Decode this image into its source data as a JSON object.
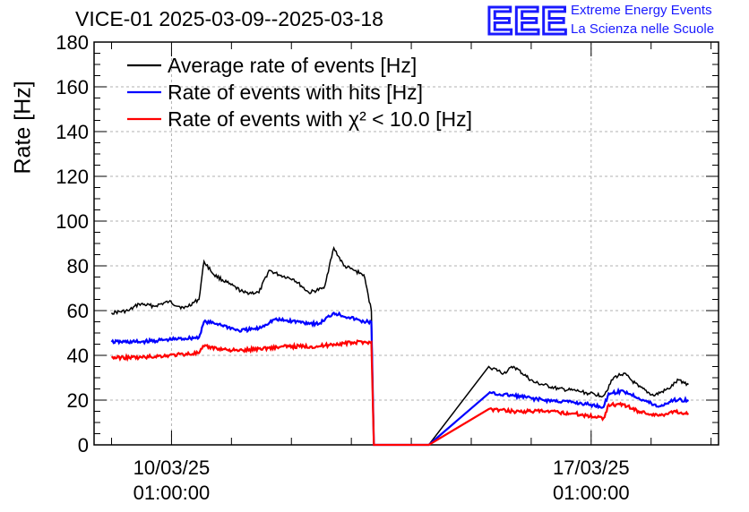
{
  "title": "VICE-01 2025-03-09--2025-03-18",
  "logo": {
    "mark": "EEE",
    "line1": "Extreme Energy Events",
    "line2": "La Scienza nelle Scuole",
    "color": "#1a1aff"
  },
  "chart_data": {
    "type": "line",
    "ylabel": "Rate [Hz]",
    "xlabel": "",
    "ylim": [
      0,
      180
    ],
    "xlim": [
      "2025-03-08 18:00",
      "2025-03-19 04:00"
    ],
    "yticks": [
      "0",
      "20",
      "40",
      "60",
      "80",
      "100",
      "120",
      "140",
      "160",
      "180"
    ],
    "xticks": [
      {
        "x": "2025-03-10 01:00",
        "date": "10/03/25",
        "time": "01:00:00"
      },
      {
        "x": "2025-03-17 01:00",
        "date": "17/03/25",
        "time": "01:00:00"
      }
    ],
    "grid": true,
    "legend_position": "top-left",
    "series": [
      {
        "name": "Average rate of events [Hz]",
        "color": "#000000",
        "points": [
          [
            "2025-03-09 01:00",
            59
          ],
          [
            "2025-03-09 08:00",
            60
          ],
          [
            "2025-03-09 12:00",
            63
          ],
          [
            "2025-03-09 18:00",
            62
          ],
          [
            "2025-03-10 00:00",
            64
          ],
          [
            "2025-03-10 06:00",
            61
          ],
          [
            "2025-03-10 12:00",
            65
          ],
          [
            "2025-03-10 14:00",
            82
          ],
          [
            "2025-03-10 18:00",
            76
          ],
          [
            "2025-03-11 00:00",
            72
          ],
          [
            "2025-03-11 06:00",
            68
          ],
          [
            "2025-03-11 12:00",
            68
          ],
          [
            "2025-03-11 16:00",
            78
          ],
          [
            "2025-03-11 20:00",
            76
          ],
          [
            "2025-03-12 02:00",
            74
          ],
          [
            "2025-03-12 08:00",
            68
          ],
          [
            "2025-03-12 14:00",
            70
          ],
          [
            "2025-03-12 18:00",
            88
          ],
          [
            "2025-03-12 22:00",
            80
          ],
          [
            "2025-03-13 02:00",
            78
          ],
          [
            "2025-03-13 06:00",
            76
          ],
          [
            "2025-03-13 09:00",
            60
          ],
          [
            "2025-03-13 10:00",
            0
          ],
          [
            "2025-03-14 08:00",
            0
          ],
          [
            "2025-03-15 08:00",
            35
          ],
          [
            "2025-03-15 14:00",
            32
          ],
          [
            "2025-03-15 18:00",
            35
          ],
          [
            "2025-03-16 02:00",
            28
          ],
          [
            "2025-03-16 12:00",
            25
          ],
          [
            "2025-03-16 20:00",
            24
          ],
          [
            "2025-03-17 00:00",
            23
          ],
          [
            "2025-03-17 06:00",
            22
          ],
          [
            "2025-03-17 10:00",
            30
          ],
          [
            "2025-03-17 14:00",
            32
          ],
          [
            "2025-03-17 20:00",
            26
          ],
          [
            "2025-03-18 02:00",
            22
          ],
          [
            "2025-03-18 08:00",
            25
          ],
          [
            "2025-03-18 12:00",
            29
          ],
          [
            "2025-03-18 16:00",
            27
          ]
        ]
      },
      {
        "name": "Rate of events with hits [Hz]",
        "color": "#0000ff",
        "points": [
          [
            "2025-03-09 01:00",
            46
          ],
          [
            "2025-03-09 12:00",
            46
          ],
          [
            "2025-03-10 00:00",
            47
          ],
          [
            "2025-03-10 12:00",
            48
          ],
          [
            "2025-03-10 14:00",
            55
          ],
          [
            "2025-03-10 20:00",
            54
          ],
          [
            "2025-03-11 04:00",
            51
          ],
          [
            "2025-03-11 12:00",
            52
          ],
          [
            "2025-03-11 18:00",
            56
          ],
          [
            "2025-03-12 04:00",
            55
          ],
          [
            "2025-03-12 12:00",
            54
          ],
          [
            "2025-03-12 18:00",
            59
          ],
          [
            "2025-03-13 00:00",
            57
          ],
          [
            "2025-03-13 06:00",
            55
          ],
          [
            "2025-03-13 09:00",
            55
          ],
          [
            "2025-03-13 10:00",
            0
          ],
          [
            "2025-03-14 08:00",
            0
          ],
          [
            "2025-03-15 08:00",
            23
          ],
          [
            "2025-03-15 18:00",
            22
          ],
          [
            "2025-03-16 06:00",
            20
          ],
          [
            "2025-03-16 18:00",
            19
          ],
          [
            "2025-03-17 00:00",
            18
          ],
          [
            "2025-03-17 06:00",
            17
          ],
          [
            "2025-03-17 08:00",
            23
          ],
          [
            "2025-03-17 14:00",
            24
          ],
          [
            "2025-03-17 20:00",
            21
          ],
          [
            "2025-03-18 04:00",
            17
          ],
          [
            "2025-03-18 10:00",
            20
          ],
          [
            "2025-03-18 16:00",
            20
          ]
        ]
      },
      {
        "name": "Rate of events with χ² < 10.0 [Hz]",
        "color": "#ff0000",
        "points": [
          [
            "2025-03-09 01:00",
            39
          ],
          [
            "2025-03-09 12:00",
            39
          ],
          [
            "2025-03-10 00:00",
            40
          ],
          [
            "2025-03-10 12:00",
            41
          ],
          [
            "2025-03-10 14:00",
            44
          ],
          [
            "2025-03-10 20:00",
            43
          ],
          [
            "2025-03-11 04:00",
            42
          ],
          [
            "2025-03-11 12:00",
            43
          ],
          [
            "2025-03-12 00:00",
            44
          ],
          [
            "2025-03-12 12:00",
            44
          ],
          [
            "2025-03-12 18:00",
            45
          ],
          [
            "2025-03-13 06:00",
            46
          ],
          [
            "2025-03-13 09:00",
            46
          ],
          [
            "2025-03-13 10:00",
            0
          ],
          [
            "2025-03-14 08:00",
            0
          ],
          [
            "2025-03-15 08:00",
            16
          ],
          [
            "2025-03-15 18:00",
            15
          ],
          [
            "2025-03-16 06:00",
            15
          ],
          [
            "2025-03-16 18:00",
            14
          ],
          [
            "2025-03-17 06:00",
            12
          ],
          [
            "2025-03-17 08:00",
            18
          ],
          [
            "2025-03-17 14:00",
            18
          ],
          [
            "2025-03-17 20:00",
            15
          ],
          [
            "2025-03-18 04:00",
            13
          ],
          [
            "2025-03-18 10:00",
            15
          ],
          [
            "2025-03-18 16:00",
            14
          ]
        ]
      }
    ]
  }
}
